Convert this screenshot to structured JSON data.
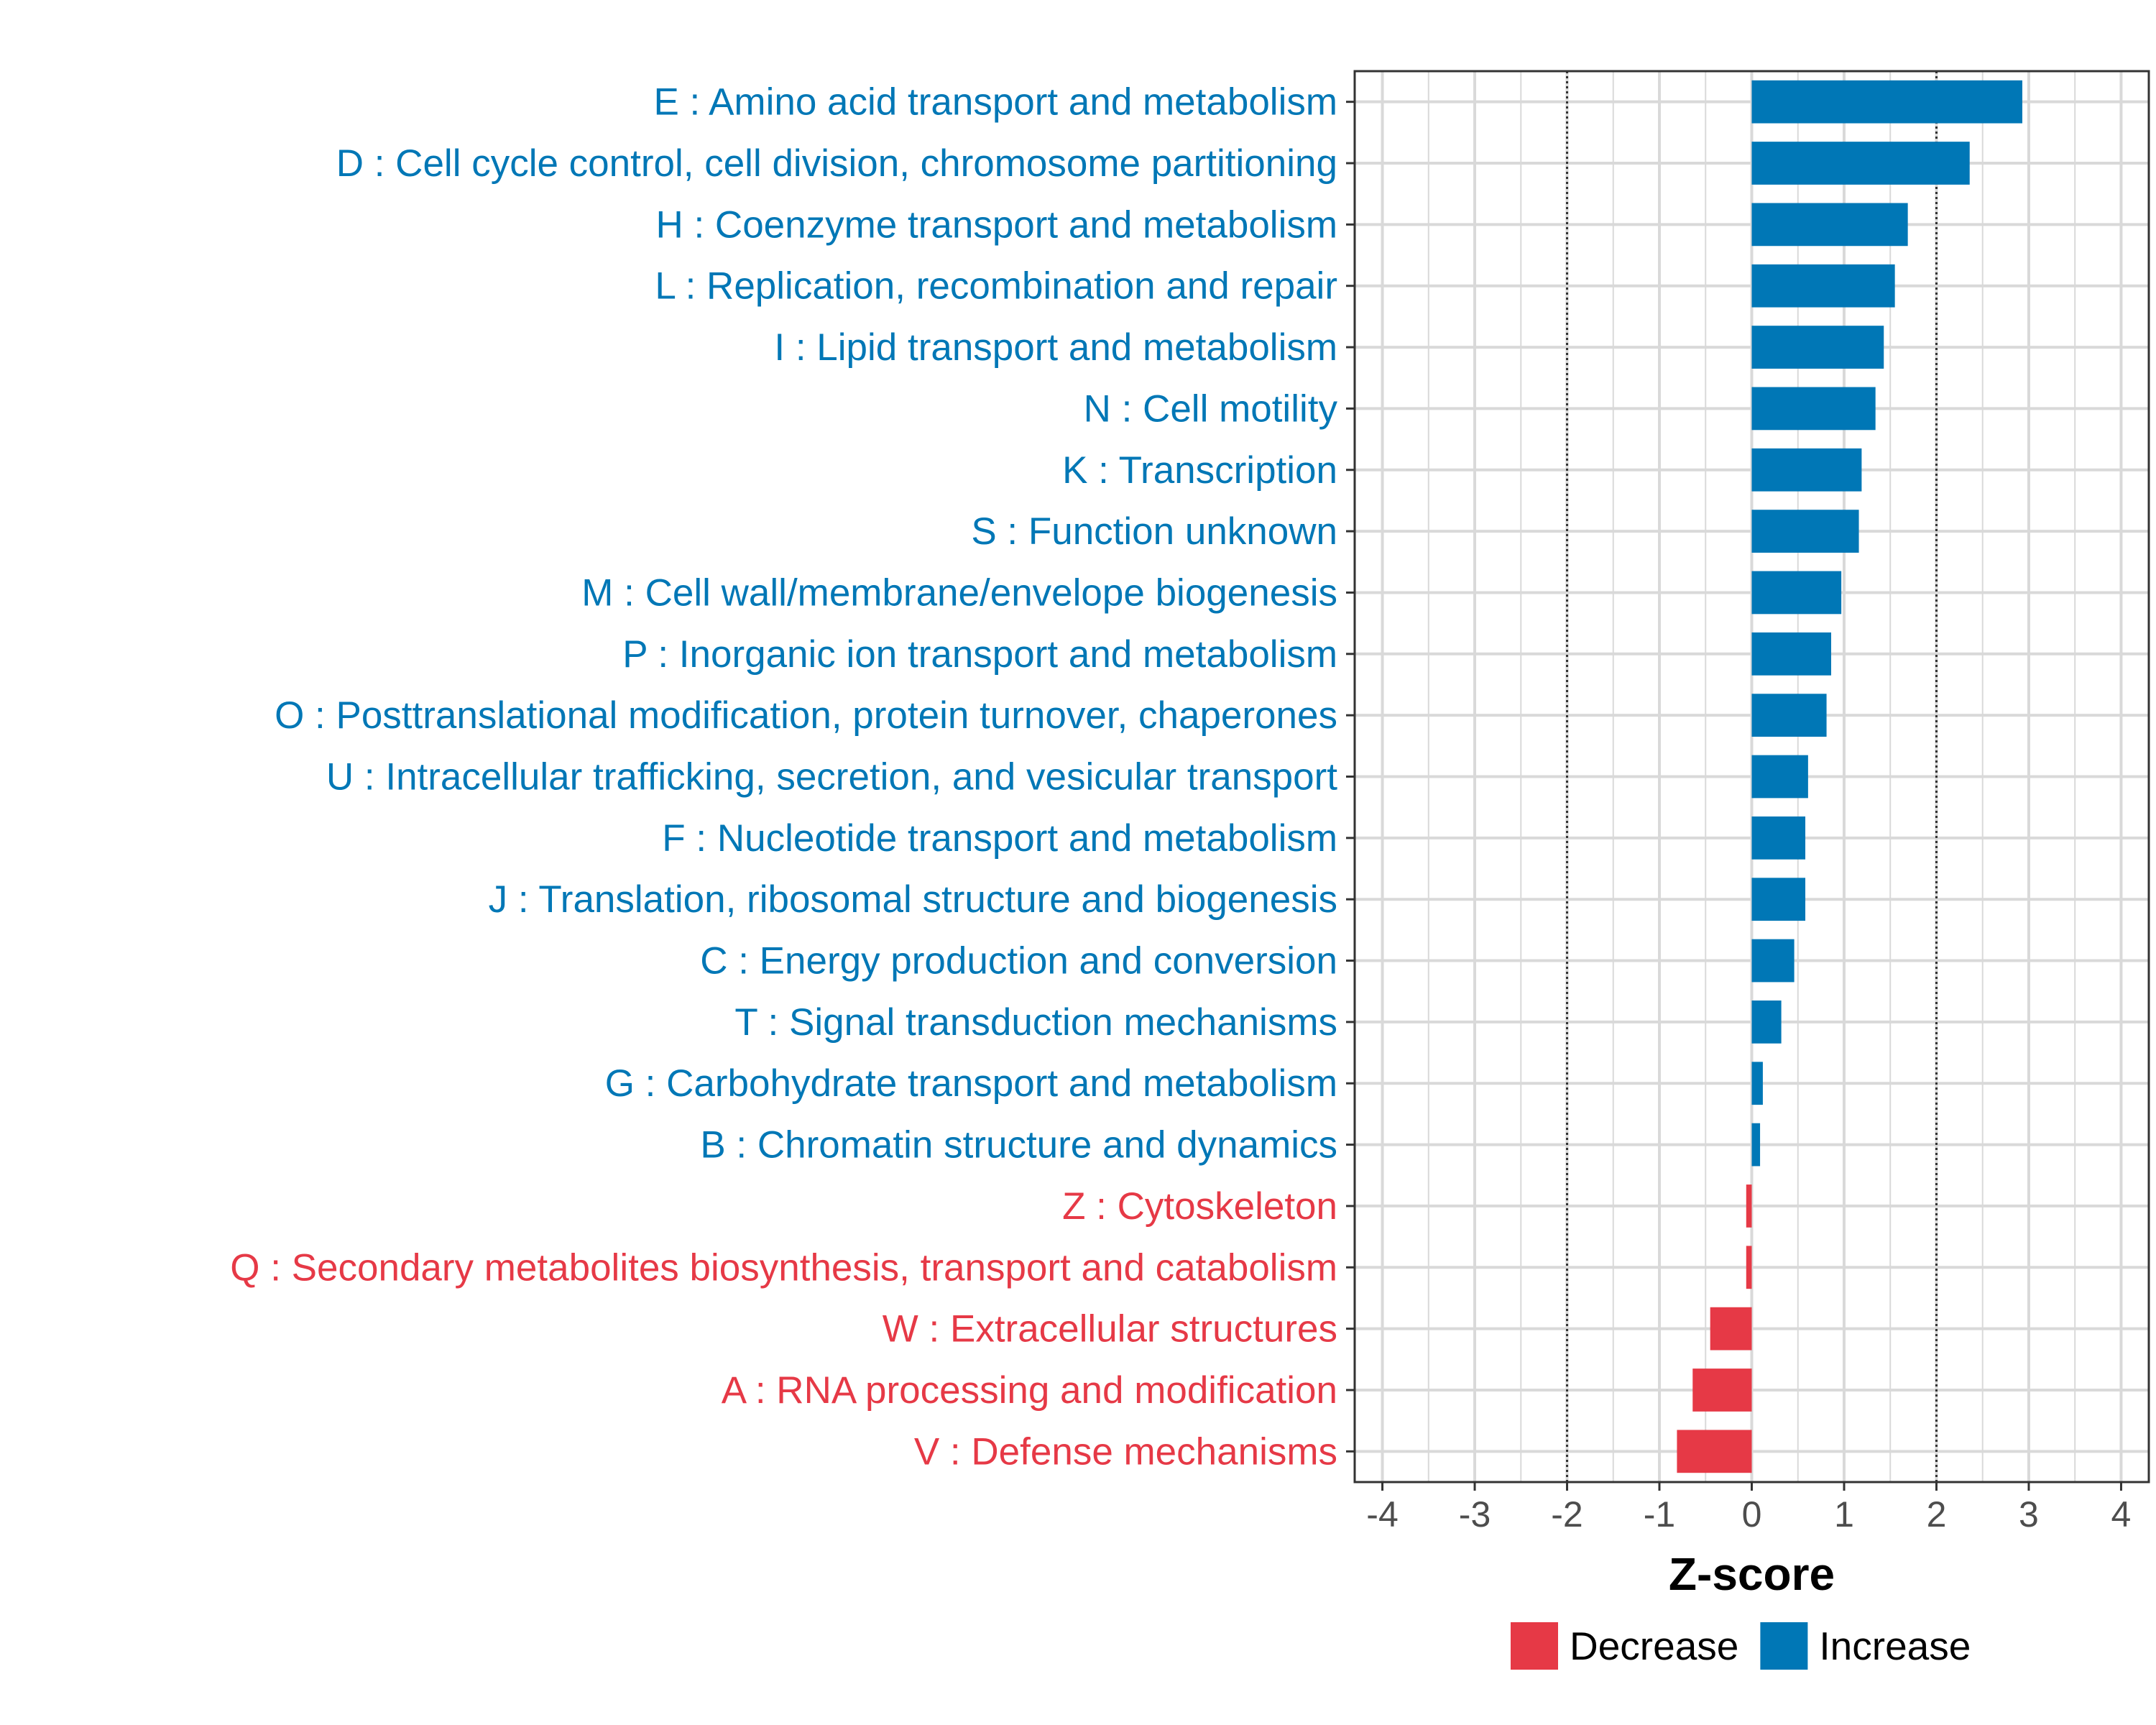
{
  "chart_data": {
    "type": "bar",
    "orientation": "horizontal",
    "xlabel": "Z-score",
    "xlim": [
      -4.3,
      4.3
    ],
    "xticks": [
      -4,
      -3,
      -2,
      -1,
      0,
      1,
      2,
      3,
      4
    ],
    "xtick_labels": [
      "-4",
      "-3",
      "-2",
      "-1",
      "0",
      "1",
      "2",
      "3",
      "4"
    ],
    "reference_lines": [
      -2,
      2
    ],
    "grid": true,
    "categories": [
      "E : Amino acid transport and metabolism",
      "D : Cell cycle control, cell division, chromosome partitioning",
      "H : Coenzyme transport and metabolism",
      "L : Replication, recombination and repair",
      "I : Lipid transport and metabolism",
      "N : Cell motility",
      "K : Transcription",
      "S : Function unknown",
      "M : Cell wall/membrane/envelope biogenesis",
      "P : Inorganic ion transport and metabolism",
      "O : Posttranslational modification, protein turnover, chaperones",
      "U : Intracellular trafficking, secretion, and vesicular transport",
      "F : Nucleotide transport and metabolism",
      "J : Translation, ribosomal structure and biogenesis",
      "C : Energy production and conversion",
      "T : Signal transduction mechanisms",
      "G : Carbohydrate transport and metabolism",
      "B : Chromatin structure and dynamics",
      "Z : Cytoskeleton",
      "Q : Secondary metabolites biosynthesis, transport and catabolism",
      "W : Extracellular structures",
      "A : RNA processing and modification",
      "V : Defense mechanisms"
    ],
    "values": [
      2.93,
      2.36,
      1.69,
      1.55,
      1.43,
      1.34,
      1.19,
      1.16,
      0.97,
      0.86,
      0.81,
      0.61,
      0.58,
      0.58,
      0.46,
      0.32,
      0.12,
      0.09,
      -0.06,
      -0.06,
      -0.45,
      -0.64,
      -0.81
    ],
    "groups": [
      "Increase",
      "Increase",
      "Increase",
      "Increase",
      "Increase",
      "Increase",
      "Increase",
      "Increase",
      "Increase",
      "Increase",
      "Increase",
      "Increase",
      "Increase",
      "Increase",
      "Increase",
      "Increase",
      "Increase",
      "Increase",
      "Decrease",
      "Decrease",
      "Decrease",
      "Decrease",
      "Decrease"
    ],
    "colors": {
      "Decrease": "#e63946",
      "Increase": "#0077b6"
    },
    "legend": {
      "position": "bottom",
      "items": [
        {
          "label": "Decrease",
          "color": "#e63946"
        },
        {
          "label": "Increase",
          "color": "#0077b6"
        }
      ]
    }
  }
}
